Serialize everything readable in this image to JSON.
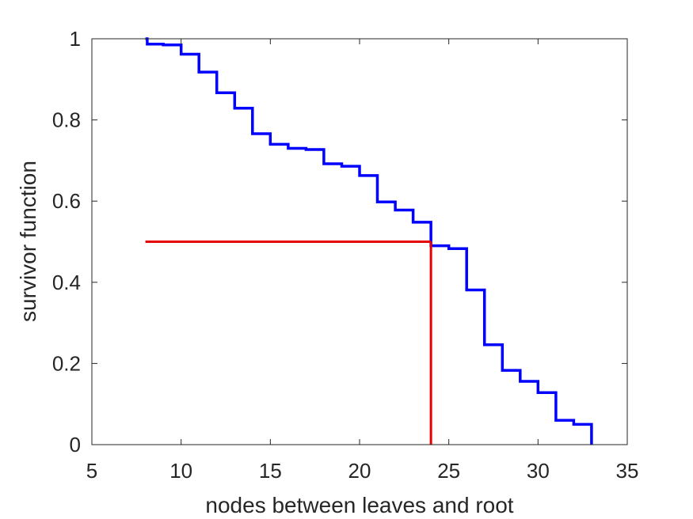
{
  "chart_data": {
    "type": "line",
    "step": true,
    "title": "",
    "xlabel": "nodes between leaves and root",
    "ylabel": "survivor function",
    "xlim": [
      5,
      35
    ],
    "ylim": [
      0,
      1
    ],
    "xticks": [
      5,
      10,
      15,
      20,
      25,
      30,
      35
    ],
    "yticks": [
      0,
      0.2,
      0.4,
      0.6,
      0.8,
      1
    ],
    "xtick_labels": [
      "5",
      "10",
      "15",
      "20",
      "25",
      "30",
      "35"
    ],
    "ytick_labels": [
      "0",
      "0.2",
      "0.4",
      "0.6",
      "0.8",
      "1"
    ],
    "grid": false,
    "series": [
      {
        "color": "#0000FF",
        "x": [
          8,
          8.1,
          9,
          10,
          11,
          12,
          13,
          14,
          15,
          16,
          17,
          18,
          19,
          20,
          21,
          22,
          23,
          24,
          25,
          26,
          27,
          28,
          29,
          30,
          31,
          32,
          33
        ],
        "y": [
          1,
          0.987,
          0.985,
          0.962,
          0.918,
          0.867,
          0.829,
          0.766,
          0.74,
          0.73,
          0.727,
          0.692,
          0.686,
          0.663,
          0.598,
          0.578,
          0.548,
          0.49,
          0.483,
          0.381,
          0.246,
          0.183,
          0.156,
          0.128,
          0.06,
          0.05,
          0
        ]
      }
    ],
    "median_lines": {
      "color": "#E60000",
      "level": 0.5,
      "x_start": 8,
      "median_x": 24
    }
  }
}
